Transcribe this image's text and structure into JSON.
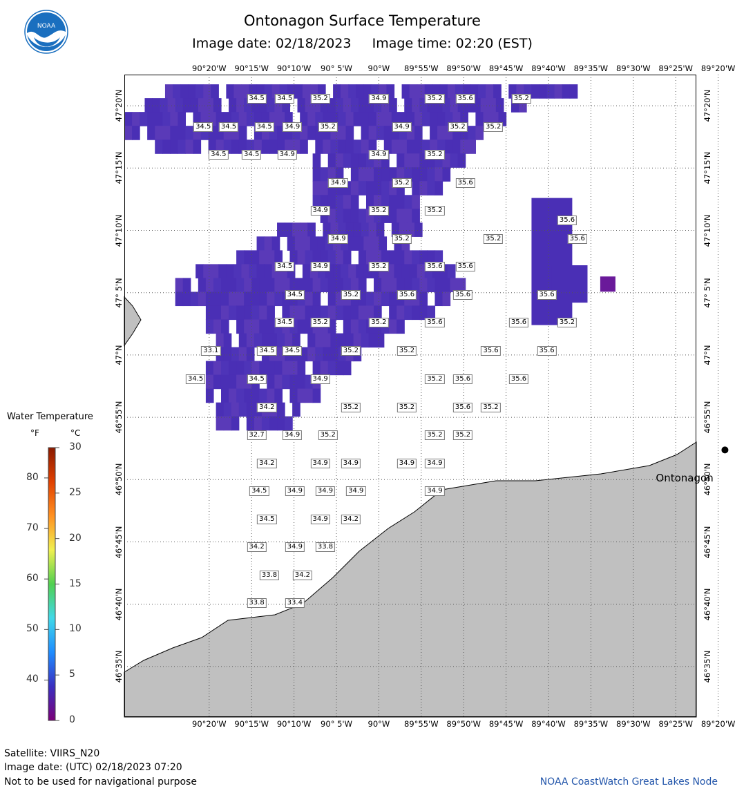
{
  "header": {
    "title": "Ontonagon Surface Temperature",
    "image_date": "Image date: 02/18/2023",
    "image_time": "Image time: 02:20 (EST)"
  },
  "logo": {
    "text": "NOAA",
    "icon": "noaa-logo-icon",
    "color": "#1a6fbf"
  },
  "map": {
    "lon_labels": [
      "90°20'W",
      "90°15'W",
      "90°10'W",
      "90° 5'W",
      "90°W",
      "89°55'W",
      "89°50'W",
      "89°45'W",
      "89°40'W",
      "89°35'W",
      "89°30'W",
      "89°25'W",
      "89°20'W"
    ],
    "lat_labels": [
      "47°20'N",
      "47°15'N",
      "47°10'N",
      "47° 5'N",
      "47°N",
      "46°55'N",
      "46°50'N",
      "46°45'N",
      "46°40'N",
      "46°35'N"
    ],
    "city": {
      "name": "Ontonagon",
      "lon": -89.32,
      "lat": 46.873
    },
    "land_color": "#c0c0c0",
    "water_color": "#4a2fb5"
  },
  "temperature_labels": [
    {
      "lon": -90.24,
      "lat": 47.343,
      "v": "34.5"
    },
    {
      "lon": -90.185,
      "lat": 47.343,
      "v": "34.5"
    },
    {
      "lon": -90.115,
      "lat": 47.343,
      "v": "35.2"
    },
    {
      "lon": -90.0,
      "lat": 47.343,
      "v": "34.9"
    },
    {
      "lon": -89.89,
      "lat": 47.343,
      "v": "35.2"
    },
    {
      "lon": -89.83,
      "lat": 47.343,
      "v": "35.6"
    },
    {
      "lon": -89.72,
      "lat": 47.343,
      "v": "35.2"
    },
    {
      "lon": -90.345,
      "lat": 47.305,
      "v": "34.5"
    },
    {
      "lon": -90.295,
      "lat": 47.305,
      "v": "34.5"
    },
    {
      "lon": -90.225,
      "lat": 47.305,
      "v": "34.5"
    },
    {
      "lon": -90.17,
      "lat": 47.305,
      "v": "34.9"
    },
    {
      "lon": -90.1,
      "lat": 47.305,
      "v": "35.2"
    },
    {
      "lon": -89.955,
      "lat": 47.305,
      "v": "34.9"
    },
    {
      "lon": -89.845,
      "lat": 47.305,
      "v": "35.2"
    },
    {
      "lon": -89.775,
      "lat": 47.305,
      "v": "35.2"
    },
    {
      "lon": -90.315,
      "lat": 47.268,
      "v": "34.5"
    },
    {
      "lon": -90.25,
      "lat": 47.268,
      "v": "34.5"
    },
    {
      "lon": -90.18,
      "lat": 47.268,
      "v": "34.9"
    },
    {
      "lon": -90.0,
      "lat": 47.268,
      "v": "34.9"
    },
    {
      "lon": -89.89,
      "lat": 47.268,
      "v": "35.2"
    },
    {
      "lon": -90.08,
      "lat": 47.23,
      "v": "34.9"
    },
    {
      "lon": -89.955,
      "lat": 47.23,
      "v": "35.2"
    },
    {
      "lon": -89.83,
      "lat": 47.23,
      "v": "35.6"
    },
    {
      "lon": -90.115,
      "lat": 47.193,
      "v": "34.9"
    },
    {
      "lon": -90.0,
      "lat": 47.193,
      "v": "35.2"
    },
    {
      "lon": -89.89,
      "lat": 47.193,
      "v": "35.2"
    },
    {
      "lon": -89.63,
      "lat": 47.18,
      "v": "35.6"
    },
    {
      "lon": -90.08,
      "lat": 47.155,
      "v": "34.9"
    },
    {
      "lon": -89.955,
      "lat": 47.155,
      "v": "35.2"
    },
    {
      "lon": -89.775,
      "lat": 47.155,
      "v": "35.2"
    },
    {
      "lon": -89.61,
      "lat": 47.155,
      "v": "35.6"
    },
    {
      "lon": -90.185,
      "lat": 47.118,
      "v": "34.5"
    },
    {
      "lon": -90.115,
      "lat": 47.118,
      "v": "34.9"
    },
    {
      "lon": -90.0,
      "lat": 47.118,
      "v": "35.2"
    },
    {
      "lon": -89.89,
      "lat": 47.118,
      "v": "35.6"
    },
    {
      "lon": -89.83,
      "lat": 47.118,
      "v": "35.6"
    },
    {
      "lon": -90.165,
      "lat": 47.08,
      "v": "34.5"
    },
    {
      "lon": -90.055,
      "lat": 47.08,
      "v": "35.2"
    },
    {
      "lon": -89.945,
      "lat": 47.08,
      "v": "35.6"
    },
    {
      "lon": -89.835,
      "lat": 47.08,
      "v": "35.6"
    },
    {
      "lon": -89.67,
      "lat": 47.08,
      "v": "35.6"
    },
    {
      "lon": -90.185,
      "lat": 47.043,
      "v": "34.5"
    },
    {
      "lon": -90.115,
      "lat": 47.043,
      "v": "35.2"
    },
    {
      "lon": -90.0,
      "lat": 47.043,
      "v": "35.2"
    },
    {
      "lon": -89.89,
      "lat": 47.043,
      "v": "35.6"
    },
    {
      "lon": -89.725,
      "lat": 47.043,
      "v": "35.6"
    },
    {
      "lon": -89.63,
      "lat": 47.043,
      "v": "35.2"
    },
    {
      "lon": -90.33,
      "lat": 47.005,
      "v": "33.1"
    },
    {
      "lon": -90.22,
      "lat": 47.005,
      "v": "34.5"
    },
    {
      "lon": -90.17,
      "lat": 47.005,
      "v": "34.5"
    },
    {
      "lon": -90.055,
      "lat": 47.005,
      "v": "35.2"
    },
    {
      "lon": -89.945,
      "lat": 47.005,
      "v": "35.2"
    },
    {
      "lon": -89.78,
      "lat": 47.005,
      "v": "35.6"
    },
    {
      "lon": -89.67,
      "lat": 47.005,
      "v": "35.6"
    },
    {
      "lon": -90.36,
      "lat": 46.968,
      "v": "34.5"
    },
    {
      "lon": -90.24,
      "lat": 46.968,
      "v": "34.5"
    },
    {
      "lon": -90.115,
      "lat": 46.968,
      "v": "34.9"
    },
    {
      "lon": -89.89,
      "lat": 46.968,
      "v": "35.2"
    },
    {
      "lon": -89.835,
      "lat": 46.968,
      "v": "35.6"
    },
    {
      "lon": -89.725,
      "lat": 46.968,
      "v": "35.6"
    },
    {
      "lon": -90.22,
      "lat": 46.93,
      "v": "34.2"
    },
    {
      "lon": -90.055,
      "lat": 46.93,
      "v": "35.2"
    },
    {
      "lon": -89.945,
      "lat": 46.93,
      "v": "35.2"
    },
    {
      "lon": -89.835,
      "lat": 46.93,
      "v": "35.6"
    },
    {
      "lon": -89.78,
      "lat": 46.93,
      "v": "35.2"
    },
    {
      "lon": -90.24,
      "lat": 46.893,
      "v": "32.7"
    },
    {
      "lon": -90.17,
      "lat": 46.893,
      "v": "34.9"
    },
    {
      "lon": -90.1,
      "lat": 46.893,
      "v": "35.2"
    },
    {
      "lon": -89.89,
      "lat": 46.893,
      "v": "35.2"
    },
    {
      "lon": -89.835,
      "lat": 46.893,
      "v": "35.2"
    },
    {
      "lon": -90.22,
      "lat": 46.855,
      "v": "34.2"
    },
    {
      "lon": -90.115,
      "lat": 46.855,
      "v": "34.9"
    },
    {
      "lon": -90.055,
      "lat": 46.855,
      "v": "34.9"
    },
    {
      "lon": -89.945,
      "lat": 46.855,
      "v": "34.9"
    },
    {
      "lon": -89.89,
      "lat": 46.855,
      "v": "34.9"
    },
    {
      "lon": -90.235,
      "lat": 46.818,
      "v": "34.5"
    },
    {
      "lon": -90.165,
      "lat": 46.818,
      "v": "34.9"
    },
    {
      "lon": -90.105,
      "lat": 46.818,
      "v": "34.9"
    },
    {
      "lon": -90.045,
      "lat": 46.818,
      "v": "34.9"
    },
    {
      "lon": -89.89,
      "lat": 46.818,
      "v": "34.9"
    },
    {
      "lon": -90.22,
      "lat": 46.78,
      "v": "34.5"
    },
    {
      "lon": -90.115,
      "lat": 46.78,
      "v": "34.9"
    },
    {
      "lon": -90.055,
      "lat": 46.78,
      "v": "34.2"
    },
    {
      "lon": -90.24,
      "lat": 46.743,
      "v": "34.2"
    },
    {
      "lon": -90.165,
      "lat": 46.743,
      "v": "34.9"
    },
    {
      "lon": -90.105,
      "lat": 46.743,
      "v": "33.8"
    },
    {
      "lon": -90.215,
      "lat": 46.705,
      "v": "33.8"
    },
    {
      "lon": -90.15,
      "lat": 46.705,
      "v": "34.2"
    },
    {
      "lon": -90.24,
      "lat": 46.668,
      "v": "33.8"
    },
    {
      "lon": -90.165,
      "lat": 46.668,
      "v": "33.4"
    }
  ],
  "legend": {
    "title": "Water Temperature",
    "unit_f": "°F",
    "unit_c": "°C",
    "f_ticks": [
      "80",
      "70",
      "60",
      "50",
      "40"
    ],
    "c_ticks": [
      "30",
      "25",
      "20",
      "15",
      "10",
      "5",
      "0"
    ],
    "colors": [
      "#7a0078",
      "#3a2fc0",
      "#1e8cff",
      "#40d8e8",
      "#50d050",
      "#f0f050",
      "#ff9020",
      "#e04000",
      "#8a1a00"
    ]
  },
  "footer": {
    "satellite": "Satellite: VIIRS_N20",
    "utc_date": "Image date: (UTC) 02/18/2023  07:20",
    "disclaimer": "Not to be used for navigational purpose",
    "credit": "NOAA CoastWatch Great Lakes Node"
  }
}
